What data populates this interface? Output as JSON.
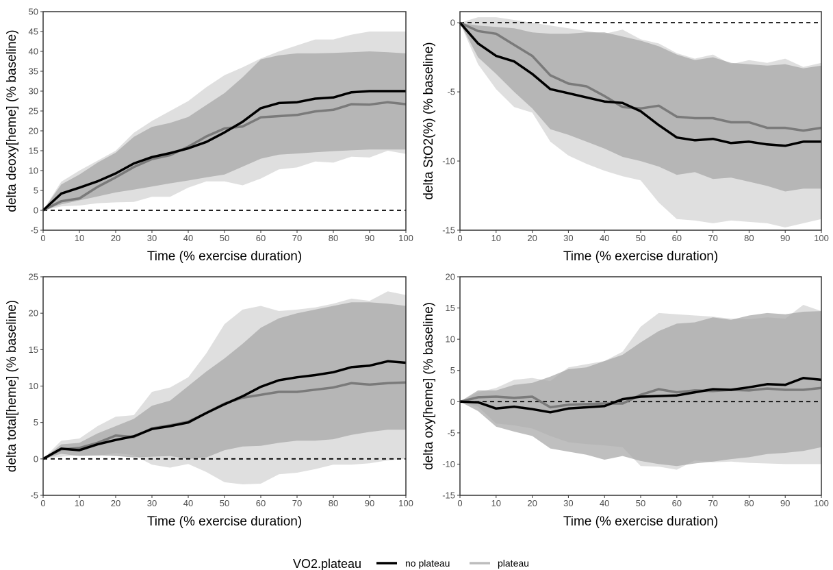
{
  "chart_data": [
    {
      "type": "line",
      "xlabel": "Time (% exercise duration)",
      "ylabel": "delta deoxy[heme] (% baseline)",
      "xlim": [
        0,
        100
      ],
      "ylim": [
        -5,
        50
      ],
      "xticks": [
        0,
        10,
        20,
        30,
        40,
        50,
        60,
        70,
        80,
        90,
        100
      ],
      "yticks": [
        -5,
        0,
        5,
        10,
        15,
        20,
        25,
        30,
        35,
        40,
        45,
        50
      ],
      "reference_line": 0,
      "x": [
        0,
        5,
        10,
        15,
        20,
        25,
        30,
        35,
        40,
        45,
        50,
        55,
        60,
        65,
        70,
        75,
        80,
        85,
        90,
        95,
        100
      ],
      "series": [
        {
          "name": "no plateau",
          "values": [
            0,
            4.2,
            5.7,
            7.3,
            9.3,
            11.8,
            13.4,
            14.4,
            15.6,
            17.2,
            19.6,
            22.3,
            25.7,
            27.0,
            27.2,
            28.1,
            28.4,
            29.7,
            30.0,
            30.0,
            30.0
          ],
          "lower": [
            0,
            1.5,
            2.5,
            3.5,
            4.5,
            5.2,
            6.0,
            6.8,
            7.5,
            8.3,
            9.0,
            11.0,
            13.0,
            14.0,
            14.3,
            14.6,
            14.9,
            15.1,
            15.3,
            15.3,
            15.3
          ],
          "upper": [
            0,
            6.5,
            9.0,
            12.0,
            14.5,
            18.5,
            21.0,
            22.0,
            23.5,
            26.5,
            29.5,
            33.5,
            38.0,
            39.0,
            39.5,
            39.5,
            39.6,
            39.8,
            40.0,
            39.8,
            39.5
          ]
        },
        {
          "name": "plateau",
          "values": [
            0,
            2.3,
            3.0,
            5.9,
            8.3,
            10.9,
            12.9,
            13.9,
            16.0,
            18.6,
            20.6,
            21.1,
            23.4,
            23.7,
            24.0,
            24.9,
            25.3,
            26.7,
            26.6,
            27.2,
            26.7
          ],
          "lower": [
            0,
            1.0,
            1.2,
            1.8,
            2.0,
            2.1,
            3.4,
            3.4,
            5.7,
            7.3,
            7.3,
            6.3,
            8.0,
            10.3,
            10.8,
            12.3,
            12.0,
            13.5,
            13.3,
            15.0,
            14.2
          ],
          "upper": [
            0,
            7.2,
            10.0,
            12.5,
            15.0,
            19.5,
            22.5,
            25.0,
            27.5,
            31.0,
            34.0,
            36.0,
            38.2,
            40.0,
            41.5,
            43.0,
            43.0,
            44.2,
            45.0,
            45.0,
            45.0
          ]
        }
      ]
    },
    {
      "type": "line",
      "xlabel": "Time (% exercise duration)",
      "ylabel": "delta StO2(%) (% baseline)",
      "xlim": [
        0,
        100
      ],
      "ylim": [
        -15,
        0.8
      ],
      "xticks": [
        0,
        10,
        20,
        30,
        40,
        50,
        60,
        70,
        80,
        90,
        100
      ],
      "yticks": [
        -15,
        -10,
        -5,
        0
      ],
      "reference_line": 0,
      "x": [
        0,
        5,
        10,
        15,
        20,
        25,
        30,
        35,
        40,
        45,
        50,
        55,
        60,
        65,
        70,
        75,
        80,
        85,
        90,
        95,
        100
      ],
      "series": [
        {
          "name": "no plateau",
          "values": [
            0,
            -1.5,
            -2.4,
            -2.8,
            -3.7,
            -4.8,
            -5.1,
            -5.4,
            -5.7,
            -5.8,
            -6.4,
            -7.4,
            -8.3,
            -8.5,
            -8.4,
            -8.7,
            -8.6,
            -8.8,
            -8.9,
            -8.6,
            -8.6
          ],
          "lower": [
            0,
            -2.5,
            -3.7,
            -5.0,
            -6.2,
            -7.7,
            -8.1,
            -8.6,
            -9.1,
            -9.7,
            -10.0,
            -10.4,
            -11.0,
            -10.8,
            -11.3,
            -11.2,
            -11.5,
            -11.8,
            -12.2,
            -12.0,
            -12.0
          ],
          "upper": [
            0,
            -0.2,
            -0.3,
            -0.4,
            -0.7,
            -0.8,
            -0.8,
            -0.7,
            -0.7,
            -1.0,
            -1.3,
            -1.7,
            -2.3,
            -2.7,
            -2.5,
            -2.9,
            -3.0,
            -3.1,
            -3.0,
            -3.3,
            -3.1
          ]
        },
        {
          "name": "plateau",
          "values": [
            0,
            -0.6,
            -0.8,
            -1.6,
            -2.4,
            -3.8,
            -4.4,
            -4.6,
            -5.3,
            -6.1,
            -6.2,
            -6.0,
            -6.8,
            -6.9,
            -6.9,
            -7.2,
            -7.2,
            -7.6,
            -7.6,
            -7.8,
            -7.6
          ],
          "lower": [
            0,
            -3.0,
            -4.8,
            -6.1,
            -6.5,
            -8.6,
            -9.6,
            -10.2,
            -10.7,
            -11.1,
            -11.4,
            -13.0,
            -14.2,
            -14.3,
            -14.5,
            -14.3,
            -14.4,
            -14.5,
            -14.8,
            -14.5,
            -14.2
          ],
          "upper": [
            0,
            0.4,
            0.4,
            0.2,
            0.0,
            -0.2,
            -0.4,
            -0.6,
            -0.8,
            -0.5,
            -1.2,
            -1.5,
            -2.2,
            -2.6,
            -2.3,
            -3.0,
            -2.7,
            -2.9,
            -2.6,
            -3.2,
            -2.9
          ]
        }
      ]
    },
    {
      "type": "line",
      "xlabel": "Time (% exercise duration)",
      "ylabel": "delta total[heme] (% baseline)",
      "xlim": [
        0,
        100
      ],
      "ylim": [
        -5,
        25
      ],
      "xticks": [
        0,
        10,
        20,
        30,
        40,
        50,
        60,
        70,
        80,
        90,
        100
      ],
      "yticks": [
        -5,
        0,
        5,
        10,
        15,
        20,
        25
      ],
      "reference_line": 0,
      "x": [
        0,
        5,
        10,
        15,
        20,
        25,
        30,
        35,
        40,
        45,
        50,
        55,
        60,
        65,
        70,
        75,
        80,
        85,
        90,
        95,
        100
      ],
      "series": [
        {
          "name": "no plateau",
          "values": [
            0,
            1.4,
            1.2,
            2.0,
            2.6,
            3.1,
            4.1,
            4.5,
            5.0,
            6.3,
            7.5,
            8.6,
            9.9,
            10.8,
            11.2,
            11.5,
            11.9,
            12.6,
            12.8,
            13.4,
            13.2
          ],
          "lower": [
            0,
            0.7,
            0.4,
            0.5,
            0.4,
            0.2,
            0.3,
            0.4,
            0.0,
            0.2,
            1.2,
            1.7,
            1.8,
            2.2,
            2.5,
            2.5,
            2.7,
            3.3,
            3.7,
            4.0,
            4.0
          ],
          "upper": [
            0,
            2.0,
            2.2,
            3.5,
            4.5,
            5.5,
            7.3,
            8.0,
            10.0,
            12.0,
            13.8,
            15.8,
            18.0,
            19.3,
            20.0,
            20.5,
            21.0,
            21.5,
            21.5,
            21.3,
            21.0
          ]
        },
        {
          "name": "plateau",
          "values": [
            0,
            1.3,
            1.5,
            2.2,
            3.2,
            3.0,
            4.2,
            4.6,
            5.1,
            6.3,
            7.6,
            8.4,
            8.8,
            9.2,
            9.2,
            9.5,
            9.8,
            10.4,
            10.2,
            10.4,
            10.5
          ],
          "lower": [
            0,
            0.3,
            0.5,
            0.4,
            0.8,
            0.5,
            -0.8,
            -1.2,
            -0.7,
            -1.8,
            -3.2,
            -3.5,
            -3.4,
            -2.1,
            -1.9,
            -1.4,
            -0.8,
            -0.8,
            -0.6,
            -0.2,
            0.0
          ],
          "upper": [
            0,
            2.5,
            2.8,
            4.5,
            5.8,
            6.0,
            9.2,
            9.8,
            11.2,
            14.5,
            18.5,
            20.5,
            21.0,
            20.3,
            20.5,
            20.8,
            21.3,
            22.0,
            21.7,
            23.0,
            22.5
          ]
        }
      ]
    },
    {
      "type": "line",
      "xlabel": "Time (% exercise duration)",
      "ylabel": "delta oxy[heme] (% baseline)",
      "xlim": [
        0,
        100
      ],
      "ylim": [
        -15,
        20
      ],
      "xticks": [
        0,
        10,
        20,
        30,
        40,
        50,
        60,
        70,
        80,
        90,
        100
      ],
      "yticks": [
        -15,
        -10,
        -5,
        0,
        5,
        10,
        15,
        20
      ],
      "reference_line": 0,
      "x": [
        0,
        5,
        10,
        15,
        20,
        25,
        30,
        35,
        40,
        45,
        50,
        55,
        60,
        65,
        70,
        75,
        80,
        85,
        90,
        95,
        100
      ],
      "series": [
        {
          "name": "no plateau",
          "values": [
            0,
            -0.1,
            -1.1,
            -0.8,
            -1.2,
            -1.7,
            -1.1,
            -0.9,
            -0.7,
            0.4,
            0.8,
            0.9,
            1.0,
            1.5,
            2.0,
            1.9,
            2.3,
            2.8,
            2.7,
            3.8,
            3.5
          ],
          "lower": [
            0,
            -1.5,
            -4.0,
            -4.8,
            -5.5,
            -7.5,
            -8.0,
            -8.5,
            -9.3,
            -8.7,
            -9.5,
            -10.0,
            -10.3,
            -9.9,
            -9.6,
            -9.2,
            -8.9,
            -8.4,
            -8.2,
            -7.9,
            -7.3
          ],
          "upper": [
            0,
            1.8,
            1.8,
            2.7,
            3.0,
            4.0,
            5.2,
            5.5,
            6.5,
            7.5,
            9.5,
            11.3,
            12.5,
            12.7,
            13.5,
            13.1,
            13.8,
            14.2,
            14.0,
            14.4,
            14.5
          ]
        },
        {
          "name": "plateau",
          "values": [
            0,
            0.7,
            0.8,
            0.6,
            0.8,
            -0.9,
            -0.5,
            -0.4,
            -0.3,
            -0.3,
            1.1,
            2.0,
            1.5,
            1.8,
            1.7,
            1.9,
            1.8,
            2.1,
            1.9,
            1.9,
            2.2
          ],
          "lower": [
            0,
            -0.8,
            -3.5,
            -3.8,
            -4.3,
            -5.5,
            -6.5,
            -6.8,
            -7.0,
            -7.3,
            -10.3,
            -10.4,
            -10.9,
            -9.4,
            -9.7,
            -9.6,
            -9.8,
            -9.9,
            -10.0,
            -10.0,
            -10.0
          ],
          "upper": [
            0,
            1.5,
            2.2,
            3.5,
            3.8,
            3.3,
            5.5,
            6.0,
            6.5,
            8.0,
            12.0,
            14.2,
            14.0,
            13.8,
            13.6,
            13.3,
            13.2,
            13.5,
            13.3,
            15.5,
            14.5
          ]
        }
      ]
    }
  ],
  "legend": {
    "title": "VO2.plateau",
    "entries": [
      {
        "label": "no plateau",
        "color": "#000000"
      },
      {
        "label": "plateau",
        "color": "#bdbdbd"
      }
    ]
  },
  "colors": {
    "no_plateau_line": "#000000",
    "plateau_line": "#7a7a7a",
    "no_plateau_band": "#a6a6a6",
    "plateau_band": "#d9d9d9"
  }
}
